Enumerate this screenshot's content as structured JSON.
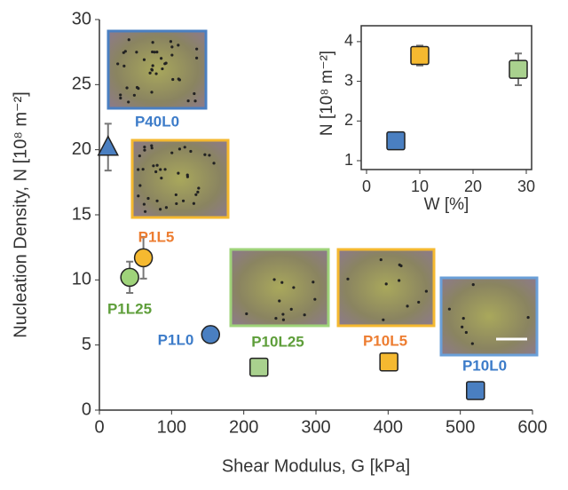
{
  "chart_data": [
    {
      "type": "scatter",
      "xlabel": "Shear Modulus, G [kPa]",
      "ylabel": "Nucleation Density, N [10⁸ m⁻²]",
      "xlim": [
        0,
        600
      ],
      "xticks": [
        0,
        100,
        200,
        300,
        400,
        500,
        600
      ],
      "ylim": [
        0,
        30
      ],
      "yticks": [
        0,
        5,
        10,
        15,
        20,
        25,
        30
      ],
      "series": [
        {
          "name": "P40L0",
          "marker": "triangle",
          "color": "#4a7fc1",
          "label_color": "#3d7cc9",
          "x": [
            12
          ],
          "values": [
            20.2
          ],
          "errors": [
            1.8
          ]
        },
        {
          "name": "P1L5",
          "marker": "circle",
          "color": "#f5b930",
          "label_color": "#ed7d31",
          "x": [
            61
          ],
          "values": [
            11.7
          ],
          "errors": [
            1.6
          ]
        },
        {
          "name": "P1L25",
          "marker": "circle",
          "color": "#9fd37a",
          "label_color": "#5e9e3a",
          "x": [
            42
          ],
          "values": [
            10.2
          ],
          "errors": [
            1.2
          ]
        },
        {
          "name": "P1L0",
          "marker": "circle",
          "color": "#4a7fc1",
          "label_color": "#3d7cc9",
          "x": [
            154
          ],
          "values": [
            5.8
          ],
          "errors": [
            0
          ]
        },
        {
          "name": "P10L25",
          "marker": "square",
          "color": "#a9d18e",
          "label_color": "#5e9e3a",
          "x": [
            221
          ],
          "values": [
            3.3
          ],
          "errors": [
            0
          ]
        },
        {
          "name": "P10L5",
          "marker": "square",
          "color": "#f5b930",
          "label_color": "#ed7d31",
          "x": [
            401
          ],
          "values": [
            3.7
          ],
          "errors": [
            0
          ]
        },
        {
          "name": "P10L0",
          "marker": "square",
          "color": "#4a7fc1",
          "label_color": "#3d7cc9",
          "x": [
            521
          ],
          "values": [
            1.5
          ],
          "errors": [
            0
          ]
        }
      ]
    },
    {
      "type": "scatter",
      "xlabel": "W [%]",
      "ylabel": "N [10⁸ m⁻²]",
      "xlim": [
        0,
        30
      ],
      "xticks": [
        0,
        10,
        20,
        30
      ],
      "ylim": [
        1,
        4.4
      ],
      "yticks": [
        1,
        2,
        3,
        4
      ],
      "series": [
        {
          "marker": "square",
          "color": "#4a7fc1",
          "x": [
            5.5
          ],
          "values": [
            1.5
          ],
          "errors": [
            0
          ]
        },
        {
          "marker": "square",
          "color": "#f5b930",
          "x": [
            10
          ],
          "values": [
            3.65
          ],
          "errors": [
            0.25
          ]
        },
        {
          "marker": "square",
          "color": "#a9d18e",
          "x": [
            28.5
          ],
          "values": [
            3.3
          ],
          "errors": [
            0.4
          ]
        }
      ]
    }
  ]
}
